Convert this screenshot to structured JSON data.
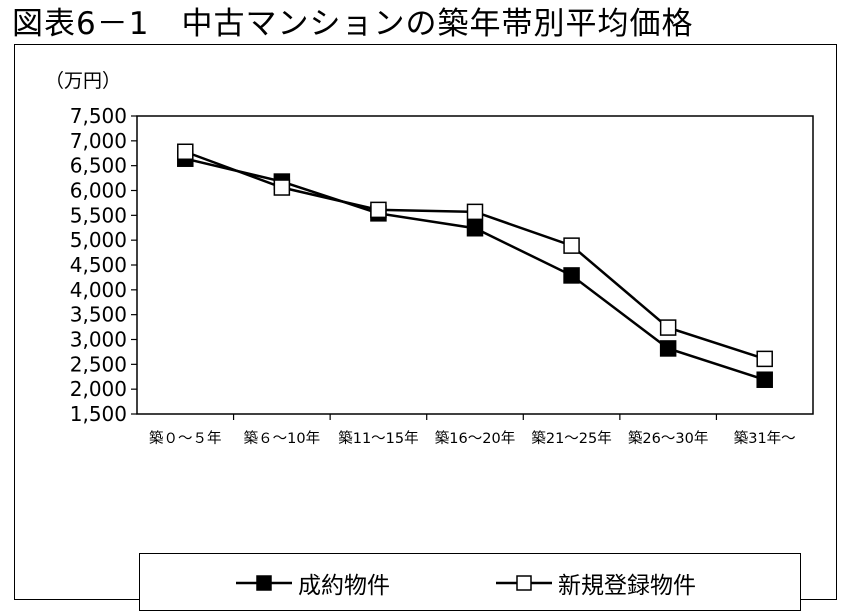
{
  "title": "図表6－1　中古マンションの築年帯別平均価格",
  "chart_data": {
    "type": "line",
    "title": "図表6－1　中古マンションの築年帯別平均価格",
    "unit_label": "（万円）",
    "categories": [
      "築０～５年",
      "築６～10年",
      "築11～15年",
      "築16～20年",
      "築21～25年",
      "築26～30年",
      "築31年～"
    ],
    "ylim": [
      1500,
      7500
    ],
    "ytick_labels": [
      "7,500",
      "7,000",
      "6,500",
      "6,000",
      "5,500",
      "5,000",
      "4,500",
      "4,000",
      "3,500",
      "3,000",
      "2,500",
      "2,000",
      "1,500"
    ],
    "ytick_values": [
      7500,
      7000,
      6500,
      6000,
      5500,
      5000,
      4500,
      4000,
      3500,
      3000,
      2500,
      2000,
      1500
    ],
    "grid": false,
    "legend_position": "bottom",
    "series": [
      {
        "name": "成約物件",
        "marker": "filled-square",
        "color": "#000000",
        "values": [
          6640,
          6180,
          5540,
          5240,
          4290,
          2820,
          2190
        ]
      },
      {
        "name": "新規登録物件",
        "marker": "open-square",
        "color": "#000000",
        "values": [
          6780,
          6060,
          5610,
          5570,
          4890,
          3240,
          2610
        ]
      }
    ]
  }
}
